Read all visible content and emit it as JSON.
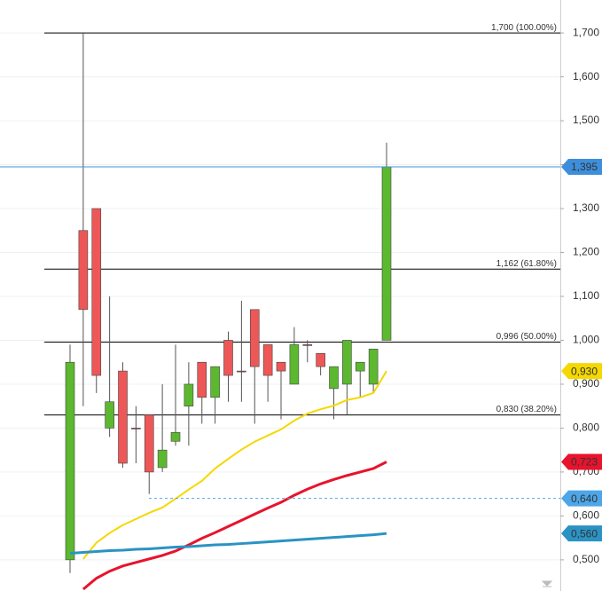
{
  "chart_data": {
    "type": "candlestick",
    "ylim": [
      0.429,
      1.775
    ],
    "yticks": [
      {
        "value": 0.5,
        "label": "0,500"
      },
      {
        "value": 0.6,
        "label": "0,600"
      },
      {
        "value": 0.7,
        "label": "0,700"
      },
      {
        "value": 0.8,
        "label": "0,800"
      },
      {
        "value": 0.9,
        "label": "0,900"
      },
      {
        "value": 1.0,
        "label": "1,000"
      },
      {
        "value": 1.1,
        "label": "1,100"
      },
      {
        "value": 1.2,
        "label": "1,200"
      },
      {
        "value": 1.3,
        "label": "1,300"
      },
      {
        "value": 1.4,
        "label": "1,400"
      },
      {
        "value": 1.5,
        "label": "1,500"
      },
      {
        "value": 1.6,
        "label": "1,600"
      },
      {
        "value": 1.7,
        "label": "1,700"
      }
    ],
    "grid": true,
    "up_color": "#5cb82f",
    "down_color": "#ee5757",
    "open": [
      0.5,
      1.25,
      1.3,
      0.8,
      0.93,
      0.8,
      0.83,
      0.71,
      0.77,
      0.85,
      0.95,
      0.87,
      1.0,
      0.93,
      1.07,
      0.99,
      0.95,
      0.9,
      0.99,
      0.97,
      0.89,
      0.9,
      0.93,
      0.9,
      1.0
    ],
    "high": [
      0.99,
      1.7,
      1.3,
      1.1,
      0.95,
      0.85,
      0.83,
      0.9,
      0.99,
      0.95,
      0.95,
      0.94,
      1.02,
      1.09,
      1.07,
      0.99,
      0.95,
      1.03,
      1.0,
      0.97,
      0.94,
      1.0,
      0.95,
      0.98,
      1.45
    ],
    "low": [
      0.47,
      0.85,
      0.88,
      0.78,
      0.71,
      0.72,
      0.65,
      0.7,
      0.76,
      0.76,
      0.81,
      0.81,
      0.86,
      0.86,
      0.81,
      0.86,
      0.82,
      0.9,
      0.95,
      0.92,
      0.82,
      0.83,
      0.87,
      0.88,
      1.0
    ],
    "close": [
      0.95,
      1.07,
      0.92,
      0.86,
      0.72,
      0.8,
      0.7,
      0.75,
      0.79,
      0.9,
      0.87,
      0.94,
      0.92,
      0.93,
      0.94,
      0.92,
      0.93,
      0.99,
      0.99,
      0.94,
      0.94,
      1.0,
      0.95,
      0.98,
      1.395
    ],
    "lines": [
      {
        "color": "#f5d800",
        "values": [
          null,
          0.502,
          0.539,
          0.561,
          0.579,
          0.593,
          0.607,
          0.619,
          0.639,
          0.66,
          0.68,
          0.708,
          0.73,
          0.751,
          0.769,
          0.783,
          0.797,
          0.817,
          0.833,
          0.843,
          0.851,
          0.864,
          0.87,
          0.88,
          0.93
        ]
      },
      {
        "color": "#e8132c",
        "values": [
          null,
          0.433,
          0.458,
          0.474,
          0.486,
          0.494,
          0.502,
          0.51,
          0.52,
          0.534,
          0.549,
          0.562,
          0.576,
          0.59,
          0.604,
          0.618,
          0.631,
          0.647,
          0.661,
          0.673,
          0.683,
          0.692,
          0.7,
          0.708,
          0.723
        ]
      },
      {
        "color": "#2a93c4",
        "values": [
          0.515,
          0.517,
          0.519,
          0.521,
          0.522,
          0.524,
          0.525,
          0.527,
          0.529,
          0.53,
          0.532,
          0.534,
          0.535,
          0.537,
          0.539,
          0.541,
          0.543,
          0.545,
          0.547,
          0.549,
          0.551,
          0.553,
          0.555,
          0.557,
          0.56
        ]
      }
    ],
    "fib_levels": [
      {
        "value": 1.7,
        "label": "1,700 (100.00%)"
      },
      {
        "value": 1.162,
        "label": "1,162 (61.80%)"
      },
      {
        "value": 0.996,
        "label": "0,996 (50.00%)"
      },
      {
        "value": 0.83,
        "label": "0,830 (38.20%)"
      }
    ],
    "price_tags": [
      {
        "value": 1.395,
        "label": "1,395",
        "color": "#3d8fdb",
        "text_color": "#ffffff"
      },
      {
        "value": 0.93,
        "label": "0,930",
        "color": "#f5d800",
        "text_color": "#333333"
      },
      {
        "value": 0.723,
        "label": "0,723",
        "color": "#e8132c",
        "text_color": "#ffffff"
      },
      {
        "value": 0.64,
        "label": "0,640",
        "color": "#4da6e8",
        "text_color": "#ffffff"
      },
      {
        "value": 0.56,
        "label": "0,560",
        "color": "#2a93c4",
        "text_color": "#ffffff"
      }
    ]
  }
}
